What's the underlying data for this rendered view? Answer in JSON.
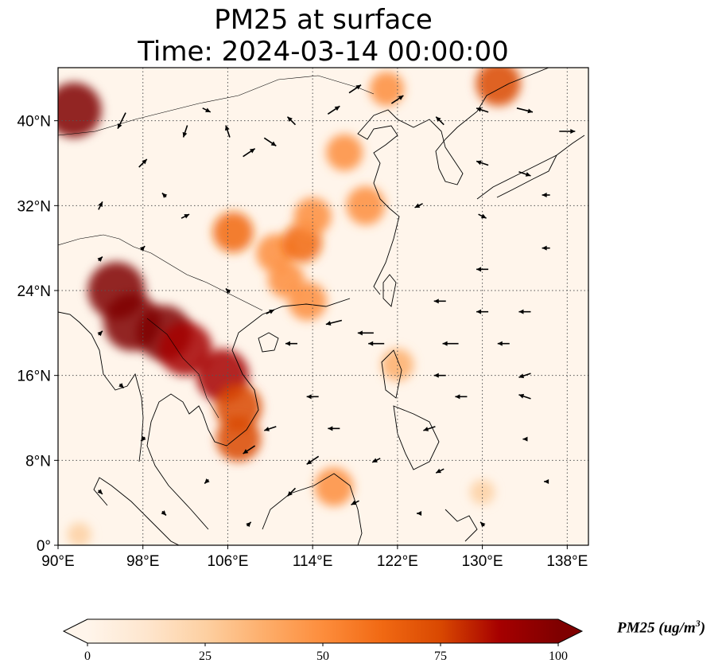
{
  "title": {
    "line1": "PM25 at surface",
    "line2": "Time: 2024-03-14 00:00:00"
  },
  "map": {
    "projection": "PlateCarree",
    "lon_range": [
      90,
      140
    ],
    "lat_range": [
      0,
      45
    ],
    "lon_ticks": [
      {
        "value": 90,
        "label": "90°E"
      },
      {
        "value": 98,
        "label": "98°E"
      },
      {
        "value": 106,
        "label": "106°E"
      },
      {
        "value": 114,
        "label": "114°E"
      },
      {
        "value": 122,
        "label": "122°E"
      },
      {
        "value": 130,
        "label": "130°E"
      },
      {
        "value": 138,
        "label": "138°E"
      }
    ],
    "lat_ticks": [
      {
        "value": 0,
        "label": "0°"
      },
      {
        "value": 8,
        "label": "8°N"
      },
      {
        "value": 16,
        "label": "16°N"
      },
      {
        "value": 24,
        "label": "24°N"
      },
      {
        "value": 32,
        "label": "32°N"
      },
      {
        "value": 40,
        "label": "40°N"
      }
    ],
    "gridlines": "dotted",
    "background_color": "#fff5eb",
    "hotspots": [
      {
        "lon": 91.5,
        "lat": 41.0,
        "pm25": 95
      },
      {
        "lon": 95.5,
        "lat": 24.0,
        "pm25": 100
      },
      {
        "lon": 97.0,
        "lat": 21.0,
        "pm25": 100
      },
      {
        "lon": 100.0,
        "lat": 20.0,
        "pm25": 95
      },
      {
        "lon": 102.0,
        "lat": 18.5,
        "pm25": 92
      },
      {
        "lon": 105.5,
        "lat": 16.0,
        "pm25": 90
      },
      {
        "lon": 107.0,
        "lat": 13.0,
        "pm25": 75
      },
      {
        "lon": 107.0,
        "lat": 10.0,
        "pm25": 70
      },
      {
        "lon": 106.5,
        "lat": 29.5,
        "pm25": 60
      },
      {
        "lon": 110.5,
        "lat": 27.5,
        "pm25": 55
      },
      {
        "lon": 113.0,
        "lat": 28.5,
        "pm25": 58
      },
      {
        "lon": 114.0,
        "lat": 31.0,
        "pm25": 52
      },
      {
        "lon": 117.0,
        "lat": 37.0,
        "pm25": 50
      },
      {
        "lon": 119.0,
        "lat": 32.0,
        "pm25": 55
      },
      {
        "lon": 111.5,
        "lat": 25.0,
        "pm25": 50
      },
      {
        "lon": 113.5,
        "lat": 23.0,
        "pm25": 55
      },
      {
        "lon": 122.0,
        "lat": 17.0,
        "pm25": 40
      },
      {
        "lon": 121.0,
        "lat": 43.0,
        "pm25": 45
      },
      {
        "lon": 131.5,
        "lat": 43.5,
        "pm25": 70
      },
      {
        "lon": 116.0,
        "lat": 5.5,
        "pm25": 55
      },
      {
        "lon": 92.0,
        "lat": 1.0,
        "pm25": 20
      },
      {
        "lon": 130.0,
        "lat": 5.0,
        "pm25": 22
      }
    ],
    "wind_arrows": [
      {
        "lon": 96,
        "lat": 40,
        "u": -2,
        "v": -4
      },
      {
        "lon": 98,
        "lat": 36,
        "u": 2,
        "v": 2
      },
      {
        "lon": 102,
        "lat": 39,
        "u": -1,
        "v": -3
      },
      {
        "lon": 104,
        "lat": 41,
        "u": 2,
        "v": -1
      },
      {
        "lon": 106,
        "lat": 39,
        "u": -1,
        "v": 3
      },
      {
        "lon": 108,
        "lat": 37,
        "u": 3,
        "v": 2
      },
      {
        "lon": 110,
        "lat": 38,
        "u": 3,
        "v": -2
      },
      {
        "lon": 112,
        "lat": 40,
        "u": -2,
        "v": 2
      },
      {
        "lon": 116,
        "lat": 41,
        "u": 3,
        "v": 2
      },
      {
        "lon": 118,
        "lat": 43,
        "u": 3,
        "v": 2
      },
      {
        "lon": 122,
        "lat": 42,
        "u": 3,
        "v": 2
      },
      {
        "lon": 126,
        "lat": 40,
        "u": -2,
        "v": 2
      },
      {
        "lon": 130,
        "lat": 41,
        "u": -3,
        "v": 1
      },
      {
        "lon": 134,
        "lat": 41,
        "u": 4,
        "v": -1
      },
      {
        "lon": 138,
        "lat": 39,
        "u": 4,
        "v": 0
      },
      {
        "lon": 130,
        "lat": 36,
        "u": -3,
        "v": 1
      },
      {
        "lon": 134,
        "lat": 35,
        "u": 3,
        "v": -1
      },
      {
        "lon": 136,
        "lat": 33,
        "u": -2,
        "v": 0
      },
      {
        "lon": 94,
        "lat": 32,
        "u": 1,
        "v": 2
      },
      {
        "lon": 100,
        "lat": 33,
        "u": -1,
        "v": 1
      },
      {
        "lon": 124,
        "lat": 32,
        "u": -2,
        "v": -1
      },
      {
        "lon": 130,
        "lat": 31,
        "u": 2,
        "v": -1
      },
      {
        "lon": 136,
        "lat": 28,
        "u": -2,
        "v": 0
      },
      {
        "lon": 130,
        "lat": 26,
        "u": -3,
        "v": 0
      },
      {
        "lon": 126,
        "lat": 23,
        "u": -3,
        "v": 0
      },
      {
        "lon": 130,
        "lat": 22,
        "u": -3,
        "v": 0
      },
      {
        "lon": 134,
        "lat": 22,
        "u": -3,
        "v": 0
      },
      {
        "lon": 116,
        "lat": 21,
        "u": -4,
        "v": -1
      },
      {
        "lon": 119,
        "lat": 20,
        "u": -4,
        "v": 0
      },
      {
        "lon": 112,
        "lat": 19,
        "u": -3,
        "v": 0
      },
      {
        "lon": 120,
        "lat": 19,
        "u": -4,
        "v": 0
      },
      {
        "lon": 127,
        "lat": 19,
        "u": -4,
        "v": 0
      },
      {
        "lon": 132,
        "lat": 19,
        "u": -3,
        "v": 0
      },
      {
        "lon": 126,
        "lat": 16,
        "u": -3,
        "v": 0
      },
      {
        "lon": 134,
        "lat": 16,
        "u": -3,
        "v": -1
      },
      {
        "lon": 114,
        "lat": 14,
        "u": -3,
        "v": 0
      },
      {
        "lon": 128,
        "lat": 14,
        "u": -3,
        "v": 0
      },
      {
        "lon": 134,
        "lat": 14,
        "u": -3,
        "v": 1
      },
      {
        "lon": 110,
        "lat": 11,
        "u": -3,
        "v": -1
      },
      {
        "lon": 116,
        "lat": 11,
        "u": -3,
        "v": 0
      },
      {
        "lon": 125,
        "lat": 11,
        "u": -3,
        "v": -1
      },
      {
        "lon": 108,
        "lat": 9,
        "u": -3,
        "v": -2
      },
      {
        "lon": 114,
        "lat": 8,
        "u": -3,
        "v": -2
      },
      {
        "lon": 120,
        "lat": 8,
        "u": -2,
        "v": -1
      },
      {
        "lon": 126,
        "lat": 7,
        "u": -2,
        "v": -1
      },
      {
        "lon": 112,
        "lat": 5,
        "u": -2,
        "v": -2
      },
      {
        "lon": 118,
        "lat": 4,
        "u": -2,
        "v": -1
      },
      {
        "lon": 94,
        "lat": 5,
        "u": 1,
        "v": -1
      },
      {
        "lon": 98,
        "lat": 10,
        "u": -1,
        "v": -1
      },
      {
        "lon": 96,
        "lat": 15,
        "u": 1,
        "v": -1
      },
      {
        "lon": 94,
        "lat": 20,
        "u": 1,
        "v": 1
      },
      {
        "lon": 94,
        "lat": 27,
        "u": 1,
        "v": 1
      },
      {
        "lon": 106,
        "lat": 24,
        "u": -1,
        "v": 1
      },
      {
        "lon": 110,
        "lat": 22,
        "u": 2,
        "v": 1
      },
      {
        "lon": 104,
        "lat": 6,
        "u": -1,
        "v": -1
      },
      {
        "lon": 100,
        "lat": 3,
        "u": 1,
        "v": -1
      },
      {
        "lon": 108,
        "lat": 2,
        "u": 1,
        "v": 1
      },
      {
        "lon": 124,
        "lat": 3,
        "u": -1,
        "v": 0
      },
      {
        "lon": 130,
        "lat": 2,
        "u": -1,
        "v": 1
      },
      {
        "lon": 136,
        "lat": 6,
        "u": -1,
        "v": 0
      },
      {
        "lon": 134,
        "lat": 10,
        "u": -1,
        "v": 0
      },
      {
        "lon": 98,
        "lat": 28,
        "u": 1,
        "v": 1
      },
      {
        "lon": 102,
        "lat": 31,
        "u": 2,
        "v": 1
      }
    ],
    "arrow_color": "#000000",
    "coastline_color": "#000000"
  },
  "colorbar": {
    "cmap": "OrRd",
    "min": 0,
    "max": 100,
    "extend": "both",
    "ticks": [
      "0",
      "25",
      "50",
      "75",
      "100"
    ],
    "label_main": "PM25 (ug/m",
    "label_sup": "3",
    "label_close": ")",
    "stops": [
      "#fff5eb",
      "#fee6ce",
      "#fdd0a2",
      "#fdae6b",
      "#fd8d3c",
      "#f16913",
      "#d94801",
      "#a60000",
      "#7f0000"
    ]
  }
}
